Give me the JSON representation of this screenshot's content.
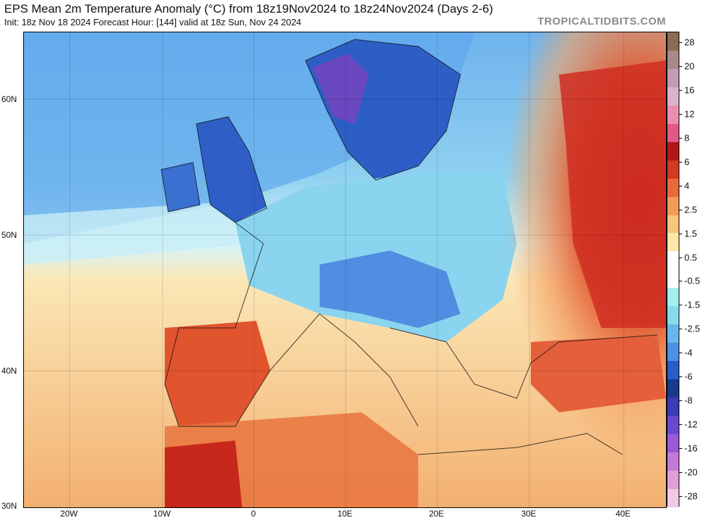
{
  "header": {
    "title": "EPS Mean 2m Temperature Anomaly (°C) from 18z19Nov2024 to 18z24Nov2024 (Days 2-6)",
    "subtitle": "Init: 18z Nov 18 2024   Forecast Hour: [144]   valid at 18z Sun, Nov 24 2024",
    "brand": "TROPICALTIDBITS.COM"
  },
  "map": {
    "region": "Europe, North Africa and Middle East",
    "lat_labels": [
      "60N",
      "50N",
      "40N",
      "30N"
    ],
    "lon_labels": [
      "20W",
      "10W",
      "0",
      "10E",
      "20E",
      "30E",
      "40E"
    ],
    "anomaly_pattern": {
      "cold": [
        "Scandinavia",
        "British Isles",
        "Central Europe",
        "Alps"
      ],
      "warm": [
        "Iberia",
        "North Africa",
        "Eastern Europe",
        "Western Russia",
        "Turkey"
      ]
    }
  },
  "colorbar": {
    "labels": [
      "28",
      "20",
      "16",
      "12",
      "8",
      "6",
      "4",
      "2.5",
      "1.5",
      "0.5",
      "-0.5",
      "-1.5",
      "-2.5",
      "-4",
      "-6",
      "-8",
      "-12",
      "-16",
      "-20",
      "-28"
    ],
    "colors": [
      "#8c6a56",
      "#a58a87",
      "#c49cb0",
      "#dcb4c8",
      "#e990b0",
      "#e05a86",
      "#b01818",
      "#d43a22",
      "#e86a3a",
      "#f29a58",
      "#f9c47c",
      "#fce8a8",
      "#ffffff",
      "#ffffff",
      "#a6eef0",
      "#86dcea",
      "#6ab6ea",
      "#4d8fe0",
      "#2b5cc8",
      "#1a3a8a",
      "#3a3cb0",
      "#6a48d0",
      "#9a5ad6",
      "#c47ad6",
      "#e0a0d6",
      "#f2c8e4"
    ]
  }
}
